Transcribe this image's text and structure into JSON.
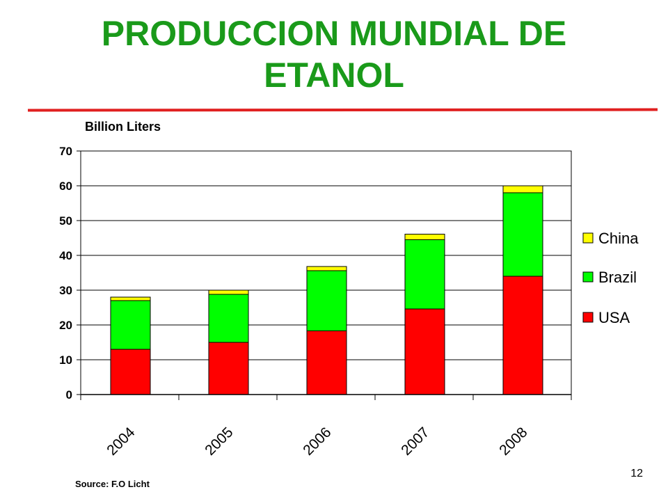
{
  "slide": {
    "title": "PRODUCCION MUNDIAL DE ETANOL",
    "unit_label": "Billion Liters",
    "source": "Source:  F.O Licht",
    "page_number": "12"
  },
  "colors": {
    "title": "#1a9a1a",
    "rule": "#e02020",
    "USA": "#ff0000",
    "Brazil": "#00ff00",
    "China": "#ffff00"
  },
  "chart_data": {
    "type": "bar",
    "stacked": true,
    "title": "",
    "ylabel": "Billion Liters",
    "xlabel": "",
    "categories": [
      "2004",
      "2005",
      "2006",
      "2007",
      "2008"
    ],
    "series": [
      {
        "name": "USA",
        "values": [
          13,
          15,
          18.3,
          24.6,
          34
        ]
      },
      {
        "name": "Brazil",
        "values": [
          14,
          13.8,
          17.3,
          19.9,
          24
        ]
      },
      {
        "name": "China",
        "values": [
          1,
          1.2,
          1.2,
          1.6,
          2
        ]
      }
    ],
    "ylim": [
      0,
      70
    ],
    "yticks": [
      0,
      10,
      20,
      30,
      40,
      50,
      60,
      70
    ],
    "grid": true,
    "legend_position": "right",
    "legend_order": [
      "China",
      "Brazil",
      "USA"
    ]
  }
}
